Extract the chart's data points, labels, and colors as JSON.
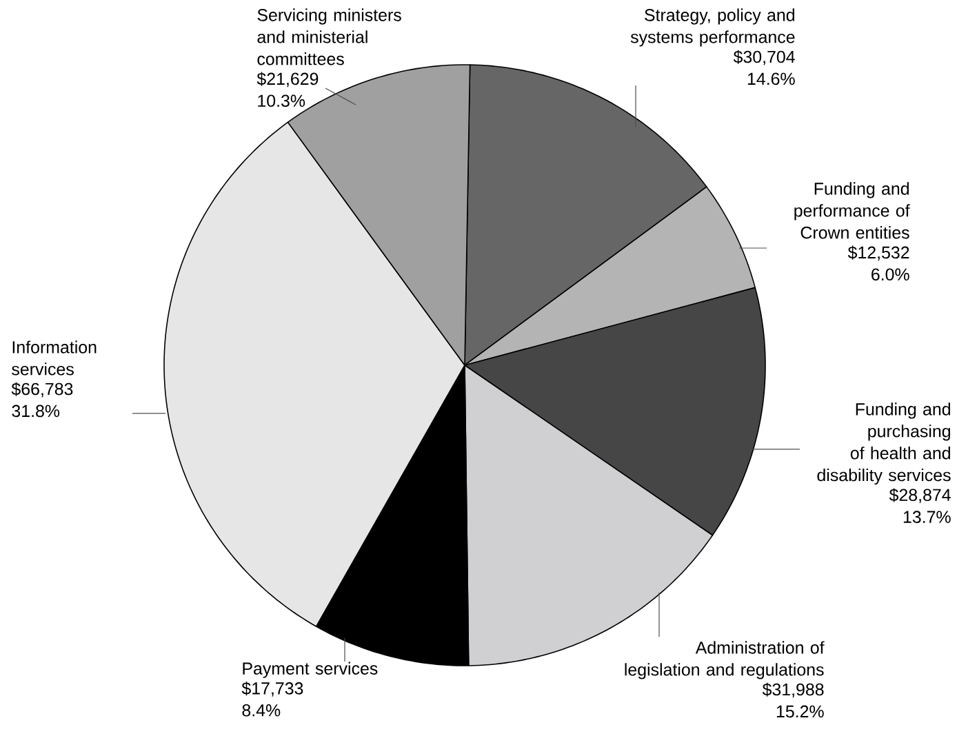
{
  "chart_data": {
    "type": "pie",
    "categories": [
      "Strategy, policy and systems performance",
      "Funding and performance of Crown entities",
      "Funding and purchasing of health and disability services",
      "Administration of legislation and regulations",
      "Payment services",
      "Information services",
      "Servicing ministers and ministerial committees"
    ],
    "values": [
      30704,
      12532,
      28874,
      31988,
      17733,
      66783,
      21629
    ],
    "colors": [
      "#666666",
      "#b4b4b4",
      "#464646",
      "#d0d0d2",
      "#000000",
      "#e6e6e6",
      "#a0a0a0"
    ],
    "value_labels": [
      "$30,704 14.6%",
      "$12,532 6.0%",
      "$28,874 13.7%",
      "$31,988 15.2%",
      "$17,733 8.4%",
      "$66,783 31.8%",
      "$21,629 10.3%"
    ]
  }
}
